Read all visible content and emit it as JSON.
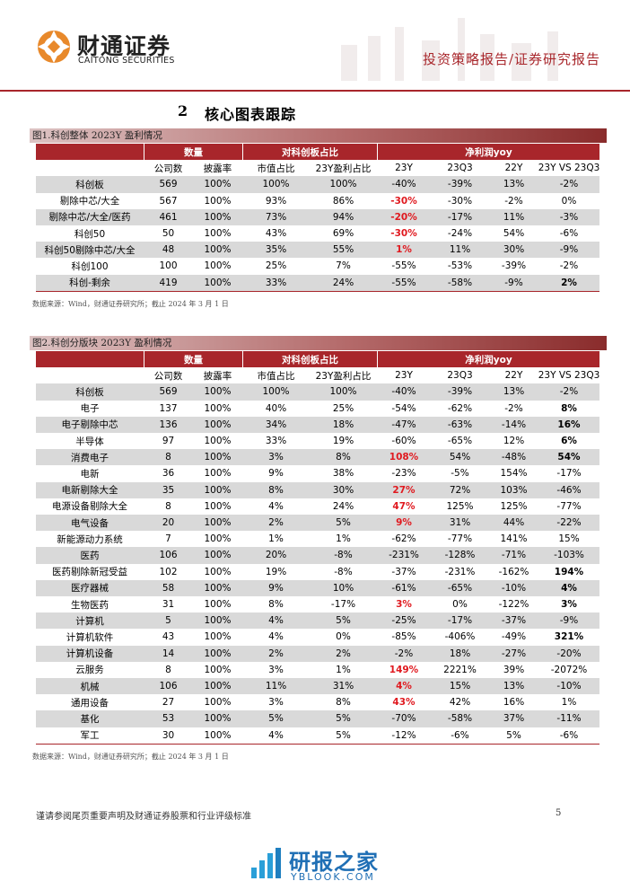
{
  "header": {
    "logo_cn": "财通证券",
    "logo_en": "CAITONG SECURITIES",
    "report_type": "投资策略报告/证券研究报告"
  },
  "section_title": {
    "number": "2",
    "text": "核心图表跟踪"
  },
  "tables": [
    {
      "caption": "图1.科创整体 2023Y 盈利情况",
      "groups": [
        "数量",
        "对科创板占比",
        "净利润yoy"
      ],
      "columns": [
        "公司数",
        "披露率",
        "市值占比",
        "23Y盈利占比",
        "23Y",
        "23Q3",
        "22Y",
        "23Y VS 23Q3"
      ],
      "rows": [
        [
          "科创板",
          "569",
          "100%",
          "100%",
          "100%",
          "-40%",
          "-39%",
          "13%",
          "-2%"
        ],
        [
          "剔除中芯/大全",
          "567",
          "100%",
          "93%",
          "86%",
          "-30%",
          "-30%",
          "-2%",
          "0%"
        ],
        [
          "剔除中芯/大全/医药",
          "461",
          "100%",
          "73%",
          "94%",
          "-20%",
          "-17%",
          "11%",
          "-3%"
        ],
        [
          "科创50",
          "50",
          "100%",
          "43%",
          "69%",
          "-30%",
          "-24%",
          "54%",
          "-6%"
        ],
        [
          "科创50剔除中芯/大全",
          "48",
          "100%",
          "35%",
          "55%",
          "1%",
          "11%",
          "30%",
          "-9%"
        ],
        [
          "科创100",
          "100",
          "100%",
          "25%",
          "7%",
          "-55%",
          "-53%",
          "-39%",
          "-2%"
        ],
        [
          "科创-剩余",
          "419",
          "100%",
          "33%",
          "24%",
          "-55%",
          "-58%",
          "-9%",
          "2%"
        ]
      ],
      "red_rows": [
        1,
        2,
        3,
        4
      ],
      "bold_rows": [
        6
      ],
      "source": "数据来源：Wind，财通证券研究所；截止 2024 年 3 月 1 日"
    },
    {
      "caption": "图2.科创分版块 2023Y 盈利情况",
      "groups": [
        "数量",
        "对科创板占比",
        "净利润yoy"
      ],
      "columns": [
        "公司数",
        "披露率",
        "市值占比",
        "23Y盈利占比",
        "23Y",
        "23Q3",
        "22Y",
        "23Y VS 23Q3"
      ],
      "rows": [
        [
          "科创板",
          "569",
          "100%",
          "100%",
          "100%",
          "-40%",
          "-39%",
          "13%",
          "-2%"
        ],
        [
          "电子",
          "137",
          "100%",
          "40%",
          "25%",
          "-54%",
          "-62%",
          "-2%",
          "8%"
        ],
        [
          "电子剔除中芯",
          "136",
          "100%",
          "34%",
          "18%",
          "-47%",
          "-63%",
          "-14%",
          "16%"
        ],
        [
          "半导体",
          "97",
          "100%",
          "33%",
          "19%",
          "-60%",
          "-65%",
          "12%",
          "6%"
        ],
        [
          "消费电子",
          "8",
          "100%",
          "3%",
          "8%",
          "108%",
          "54%",
          "-48%",
          "54%"
        ],
        [
          "电新",
          "36",
          "100%",
          "9%",
          "38%",
          "-23%",
          "-5%",
          "154%",
          "-17%"
        ],
        [
          "电新剔除大全",
          "35",
          "100%",
          "8%",
          "30%",
          "27%",
          "72%",
          "103%",
          "-46%"
        ],
        [
          "电源设备剔除大全",
          "8",
          "100%",
          "4%",
          "24%",
          "47%",
          "125%",
          "125%",
          "-77%"
        ],
        [
          "电气设备",
          "20",
          "100%",
          "2%",
          "5%",
          "9%",
          "31%",
          "44%",
          "-22%"
        ],
        [
          "新能源动力系统",
          "7",
          "100%",
          "1%",
          "1%",
          "-62%",
          "-77%",
          "141%",
          "15%"
        ],
        [
          "医药",
          "106",
          "100%",
          "20%",
          "-8%",
          "-231%",
          "-128%",
          "-71%",
          "-103%"
        ],
        [
          "医药剔除新冠受益",
          "102",
          "100%",
          "19%",
          "-8%",
          "-37%",
          "-231%",
          "-162%",
          "194%"
        ],
        [
          "医疗器械",
          "58",
          "100%",
          "9%",
          "10%",
          "-61%",
          "-65%",
          "-10%",
          "4%"
        ],
        [
          "生物医药",
          "31",
          "100%",
          "8%",
          "-17%",
          "3%",
          "0%",
          "-122%",
          "3%"
        ],
        [
          "计算机",
          "5",
          "100%",
          "4%",
          "5%",
          "-25%",
          "-17%",
          "-37%",
          "-9%"
        ],
        [
          "计算机软件",
          "43",
          "100%",
          "4%",
          "0%",
          "-85%",
          "-406%",
          "-49%",
          "321%"
        ],
        [
          "计算机设备",
          "14",
          "100%",
          "2%",
          "2%",
          "-2%",
          "18%",
          "-27%",
          "-20%"
        ],
        [
          "云服务",
          "8",
          "100%",
          "3%",
          "1%",
          "149%",
          "2221%",
          "39%",
          "-2072%"
        ],
        [
          "机械",
          "106",
          "100%",
          "11%",
          "31%",
          "4%",
          "15%",
          "13%",
          "-10%"
        ],
        [
          "通用设备",
          "27",
          "100%",
          "3%",
          "8%",
          "43%",
          "42%",
          "16%",
          "1%"
        ],
        [
          "基化",
          "53",
          "100%",
          "5%",
          "5%",
          "-70%",
          "-58%",
          "37%",
          "-11%"
        ],
        [
          "军工",
          "30",
          "100%",
          "4%",
          "5%",
          "-12%",
          "-6%",
          "5%",
          "-6%"
        ]
      ],
      "red_rows": [
        4,
        6,
        7,
        8,
        13,
        17,
        18,
        19
      ],
      "bold_rows": [
        1,
        2,
        3,
        4,
        11,
        12,
        13,
        15
      ],
      "source": "数据来源：Wind，财通证券研究所；截止 2024 年 3 月 1 日"
    }
  ],
  "footer": {
    "disclaimer": "谨请参阅尾页重要声明及财通证券股票和行业评级标准",
    "page": "5"
  },
  "watermark": {
    "cn": "研报之家",
    "en": "YBLOOK.COM"
  }
}
